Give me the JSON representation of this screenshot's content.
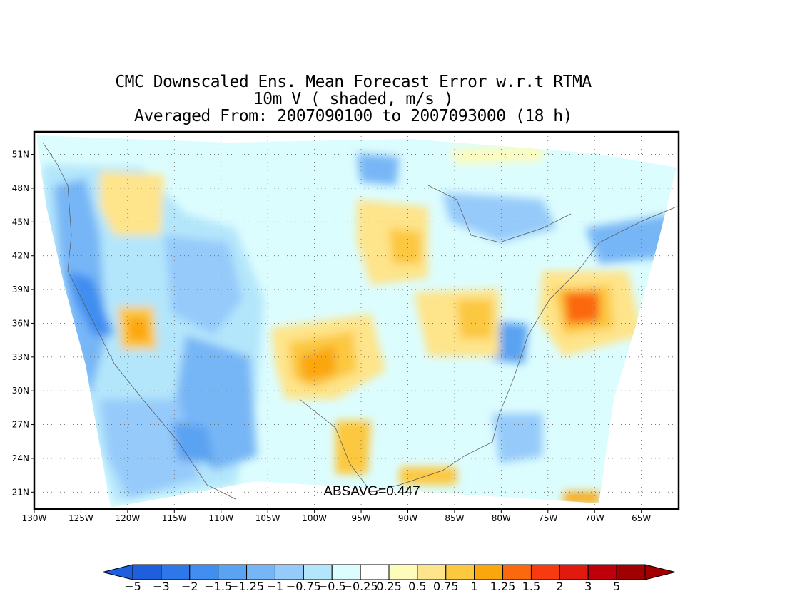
{
  "title": {
    "line1": "CMC Downscaled Ens. Mean Forecast Error w.r.t RTMA",
    "line2": "10m V ( shaded, m/s )",
    "line3": "Averaged From: 2007090100 to 2007093000 (18 h)"
  },
  "annotation": "ABSAVG=0.447",
  "map": {
    "lon_range": [
      -130,
      -61
    ],
    "lat_range": [
      19.5,
      53
    ],
    "lon_ticks": [
      "130W",
      "125W",
      "120W",
      "115W",
      "110W",
      "105W",
      "100W",
      "95W",
      "90W",
      "85W",
      "80W",
      "75W",
      "70W",
      "65W"
    ],
    "lat_ticks": [
      "51N",
      "48N",
      "45N",
      "42N",
      "39N",
      "36N",
      "33N",
      "30N",
      "27N",
      "24N",
      "21N"
    ],
    "grid": "dotted"
  },
  "colorbar": {
    "labels": [
      "-5",
      "-3",
      "-2",
      "-1.5",
      "-1.25",
      "-1",
      "-0.75",
      "-0.5",
      "-0.25",
      "0.25",
      "0.5",
      "0.75",
      "1",
      "1.25",
      "1.5",
      "2",
      "3",
      "5"
    ],
    "colors": [
      "#1f5fde",
      "#2d78e8",
      "#3f8ef0",
      "#5aa2f2",
      "#77b6f6",
      "#96cafa",
      "#b4e6fb",
      "#dcfdfe",
      "#ffffff",
      "#fefcba",
      "#fee48a",
      "#fcc840",
      "#fba60c",
      "#fb680e",
      "#f83a10",
      "#e01a0e",
      "#bf000a",
      "#a00000"
    ],
    "under_color": "#1f5fde",
    "over_color": "#a00000"
  },
  "features": [
    {
      "name": "pacific-coast-negative",
      "value": -2.0,
      "lon": -124,
      "lat": 38
    },
    {
      "name": "northern-rockies-positive",
      "value": 0.75,
      "lon": -119,
      "lat": 46
    },
    {
      "name": "sierra-positive",
      "value": 1.25,
      "lon": -119,
      "lat": 35.5
    },
    {
      "name": "southern-plains-positive",
      "value": 1.5,
      "lon": -101,
      "lat": 31.5
    },
    {
      "name": "upper-midwest-positive",
      "value": 0.75,
      "lon": -95,
      "lat": 45
    },
    {
      "name": "ohio-valley-positive",
      "value": 1.0,
      "lon": -83,
      "lat": 35.5
    },
    {
      "name": "atlantic-positive",
      "value": 2.0,
      "lon": -71.5,
      "lat": 37.5
    },
    {
      "name": "gulf-positive",
      "value": 1.0,
      "lon": -95,
      "lat": 26
    },
    {
      "name": "southeast-coast-negative",
      "value": -1.25,
      "lon": -79,
      "lat": 34
    },
    {
      "name": "mexico-plateau-negative",
      "value": -1.25,
      "lon": -110,
      "lat": 28
    }
  ]
}
